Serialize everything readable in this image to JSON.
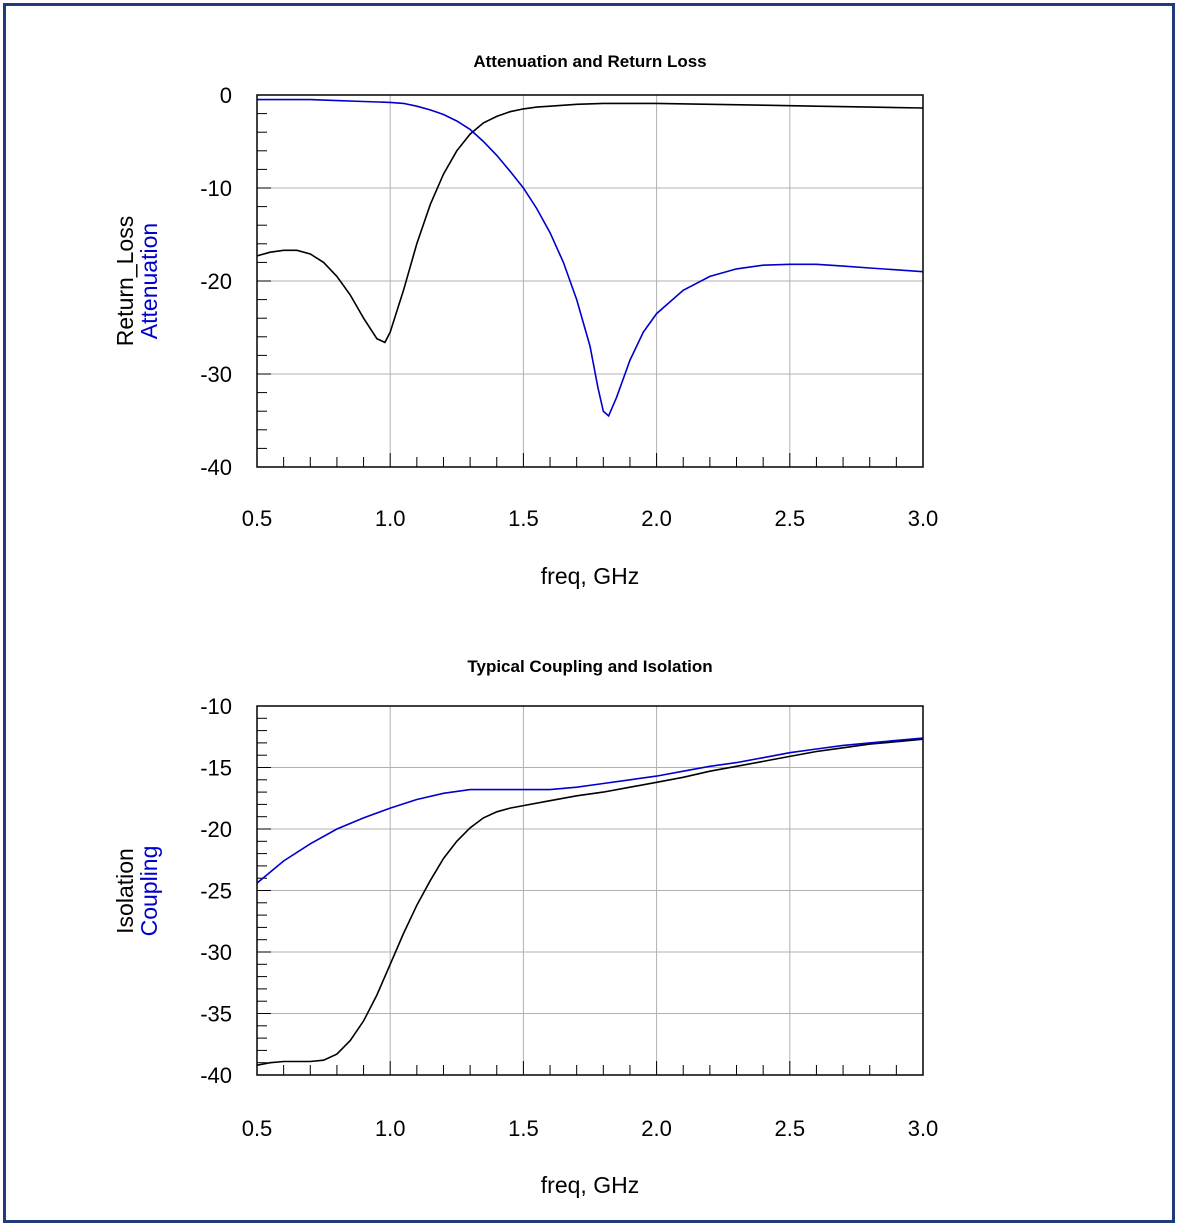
{
  "chart_data": [
    {
      "type": "line",
      "title": "Attenuation and Return Loss",
      "xlabel": "freq, GHz",
      "ylabel": [
        "Return_Loss",
        "Attenuation"
      ],
      "xlim": [
        0.5,
        3.0
      ],
      "ylim": [
        -40,
        0
      ],
      "xticks": [
        0.5,
        1.0,
        1.5,
        2.0,
        2.5,
        3.0
      ],
      "xtick_labels": [
        "0.5",
        "1.0",
        "1.5",
        "2.0",
        "2.5",
        "3.0"
      ],
      "yticks": [
        0,
        -10,
        -20,
        -30,
        -40
      ],
      "ytick_labels": [
        "0",
        "-10",
        "-20",
        "-30",
        "-40"
      ],
      "grid": true,
      "series": [
        {
          "name": "Return_Loss",
          "color": "#000000",
          "x": [
            0.5,
            0.55,
            0.6,
            0.65,
            0.7,
            0.75,
            0.8,
            0.85,
            0.9,
            0.95,
            0.98,
            1.0,
            1.05,
            1.1,
            1.15,
            1.2,
            1.25,
            1.3,
            1.35,
            1.4,
            1.45,
            1.5,
            1.55,
            1.6,
            1.7,
            1.8,
            1.9,
            2.0,
            2.2,
            2.4,
            2.6,
            2.8,
            3.0
          ],
          "y": [
            -17.3,
            -16.9,
            -16.7,
            -16.7,
            -17.1,
            -18.0,
            -19.5,
            -21.5,
            -24.0,
            -26.2,
            -26.6,
            -25.5,
            -21.0,
            -16.0,
            -11.8,
            -8.5,
            -6.0,
            -4.2,
            -3.0,
            -2.3,
            -1.8,
            -1.5,
            -1.3,
            -1.2,
            -1.0,
            -0.9,
            -0.9,
            -0.9,
            -1.0,
            -1.1,
            -1.2,
            -1.3,
            -1.4
          ]
        },
        {
          "name": "Attenuation",
          "color": "#0000cc",
          "x": [
            0.5,
            0.6,
            0.7,
            0.8,
            0.9,
            1.0,
            1.05,
            1.1,
            1.15,
            1.2,
            1.25,
            1.3,
            1.35,
            1.4,
            1.45,
            1.5,
            1.55,
            1.6,
            1.65,
            1.7,
            1.75,
            1.78,
            1.8,
            1.82,
            1.85,
            1.9,
            1.95,
            2.0,
            2.1,
            2.2,
            2.3,
            2.4,
            2.5,
            2.6,
            2.7,
            2.8,
            2.9,
            3.0
          ],
          "y": [
            -0.5,
            -0.5,
            -0.5,
            -0.6,
            -0.7,
            -0.8,
            -0.9,
            -1.2,
            -1.6,
            -2.1,
            -2.8,
            -3.7,
            -5.0,
            -6.5,
            -8.2,
            -10.0,
            -12.2,
            -14.8,
            -18.0,
            -22.0,
            -27.0,
            -31.5,
            -34.0,
            -34.5,
            -32.5,
            -28.5,
            -25.5,
            -23.5,
            -21.0,
            -19.5,
            -18.7,
            -18.3,
            -18.2,
            -18.2,
            -18.4,
            -18.6,
            -18.8,
            -19.0
          ]
        }
      ]
    },
    {
      "type": "line",
      "title": "Typical Coupling and Isolation",
      "xlabel": "freq, GHz",
      "ylabel": [
        "Isolation",
        "Coupling"
      ],
      "xlim": [
        0.5,
        3.0
      ],
      "ylim": [
        -40,
        -10
      ],
      "xticks": [
        0.5,
        1.0,
        1.5,
        2.0,
        2.5,
        3.0
      ],
      "xtick_labels": [
        "0.5",
        "1.0",
        "1.5",
        "2.0",
        "2.5",
        "3.0"
      ],
      "yticks": [
        -10,
        -15,
        -20,
        -25,
        -30,
        -35,
        -40
      ],
      "ytick_labels": [
        "-10",
        "-15",
        "-20",
        "-25",
        "-30",
        "-35",
        "-40"
      ],
      "grid": true,
      "series": [
        {
          "name": "Isolation",
          "color": "#000000",
          "x": [
            0.5,
            0.55,
            0.6,
            0.65,
            0.7,
            0.75,
            0.8,
            0.85,
            0.9,
            0.95,
            1.0,
            1.05,
            1.1,
            1.15,
            1.2,
            1.25,
            1.3,
            1.35,
            1.4,
            1.45,
            1.5,
            1.6,
            1.7,
            1.8,
            1.9,
            2.0,
            2.1,
            2.2,
            2.3,
            2.4,
            2.5,
            2.6,
            2.7,
            2.8,
            2.9,
            3.0
          ],
          "y": [
            -39.2,
            -39.0,
            -38.9,
            -38.9,
            -38.9,
            -38.8,
            -38.3,
            -37.2,
            -35.6,
            -33.5,
            -31.0,
            -28.5,
            -26.2,
            -24.2,
            -22.4,
            -21.0,
            -19.9,
            -19.1,
            -18.6,
            -18.3,
            -18.1,
            -17.7,
            -17.3,
            -17.0,
            -16.6,
            -16.2,
            -15.8,
            -15.3,
            -14.9,
            -14.5,
            -14.1,
            -13.7,
            -13.4,
            -13.1,
            -12.9,
            -12.7
          ]
        },
        {
          "name": "Coupling",
          "color": "#0000cc",
          "x": [
            0.5,
            0.6,
            0.7,
            0.8,
            0.9,
            1.0,
            1.1,
            1.2,
            1.3,
            1.4,
            1.5,
            1.6,
            1.7,
            1.8,
            1.9,
            2.0,
            2.1,
            2.2,
            2.3,
            2.4,
            2.5,
            2.6,
            2.7,
            2.8,
            2.9,
            3.0
          ],
          "y": [
            -24.4,
            -22.6,
            -21.2,
            -20.0,
            -19.1,
            -18.3,
            -17.6,
            -17.1,
            -16.8,
            -16.8,
            -16.8,
            -16.8,
            -16.6,
            -16.3,
            -16.0,
            -15.7,
            -15.3,
            -14.9,
            -14.6,
            -14.2,
            -13.8,
            -13.5,
            -13.2,
            -13.0,
            -12.8,
            -12.6
          ]
        }
      ]
    }
  ]
}
